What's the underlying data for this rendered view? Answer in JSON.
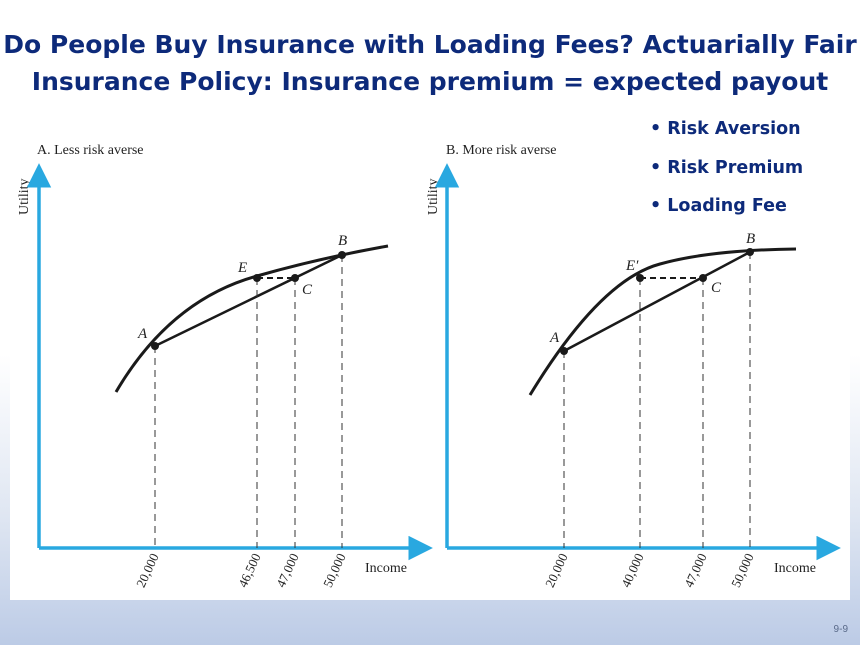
{
  "title_line1": "Do People Buy Insurance with Loading Fees? Actuarially Fair",
  "title_line2": "Insurance Policy: Insurance premium = expected payout",
  "bullets": [
    "• Risk Aversion",
    "• Risk Premium",
    "• Loading Fee"
  ],
  "page_number": "9-9",
  "panels": [
    {
      "title": "A. Less risk averse",
      "ylabel": "Utility",
      "xlabel": "Income",
      "ticks": [
        "20,000",
        "46,500",
        "47,000",
        "50,000"
      ],
      "points": {
        "A": "A",
        "B": "B",
        "C": "C",
        "E": "E"
      }
    },
    {
      "title": "B. More risk averse",
      "ylabel": "Utility",
      "xlabel": "Income",
      "ticks": [
        "20,000",
        "40,000",
        "47,000",
        "50,000"
      ],
      "points": {
        "A": "A",
        "B": "B",
        "C": "C",
        "E": "E′"
      }
    }
  ],
  "colors": {
    "title": "#0d2a7a",
    "axis": "#29a8e0",
    "curve": "#1a1a1a"
  }
}
